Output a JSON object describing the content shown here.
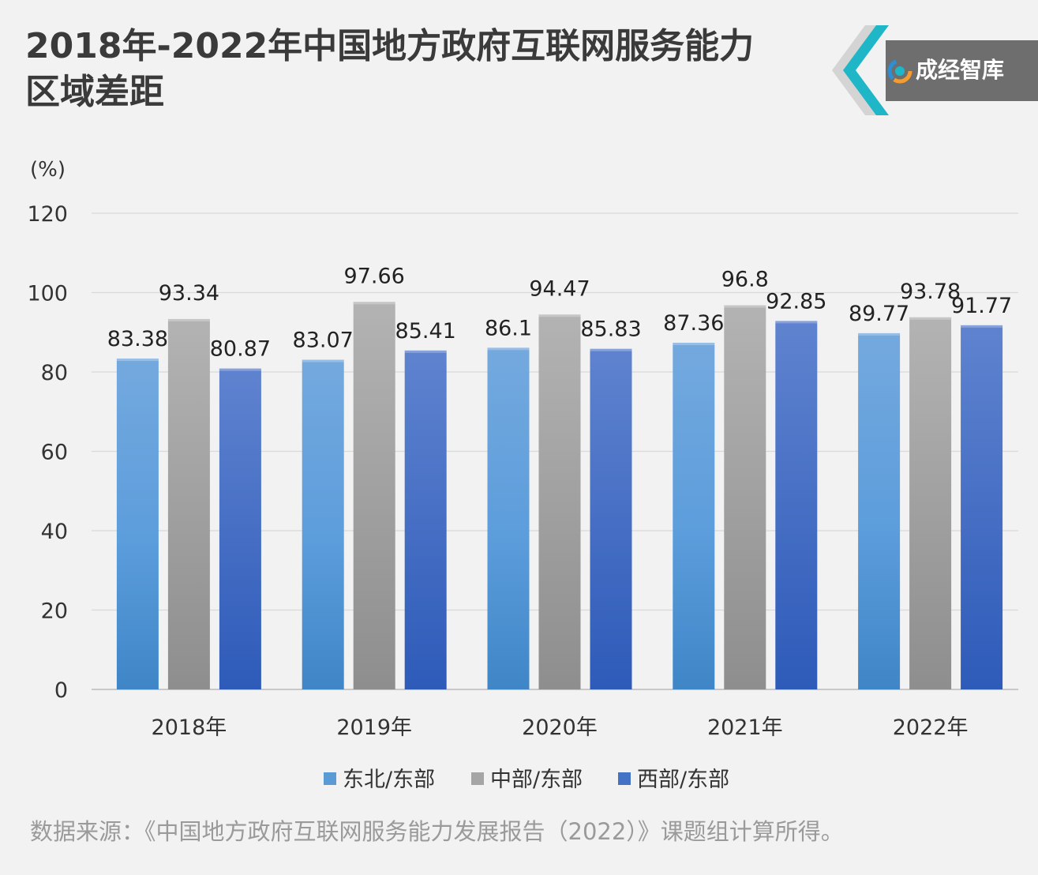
{
  "title_line1": "2018年-2022年中国地方政府互联网服务能力",
  "title_line2": "区域差距",
  "brand": {
    "name": "成经智库",
    "accent": "#1fb7c7",
    "box": "#6e6e6e",
    "icon": "swirl-logo-icon"
  },
  "source": "数据来源：《中国地方政府互联网服务能力发展报告（2022）》课题组计算所得。",
  "chart_data": {
    "type": "bar",
    "unit_label": "(%)",
    "categories": [
      "2018年",
      "2019年",
      "2020年",
      "2021年",
      "2022年"
    ],
    "series": [
      {
        "name": "东北/东部",
        "values": [
          83.38,
          83.07,
          86.1,
          87.36,
          89.77
        ],
        "labels": [
          "83.38",
          "83.07",
          "86.1",
          "87.36",
          "89.77"
        ],
        "color": "#5b9bd5"
      },
      {
        "name": "中部/东部",
        "values": [
          93.34,
          97.66,
          94.47,
          96.8,
          93.78
        ],
        "labels": [
          "93.34",
          "97.66",
          "94.47",
          "96.8",
          "93.78"
        ],
        "color": "#a5a5a5"
      },
      {
        "name": "西部/东部",
        "values": [
          80.87,
          85.41,
          85.83,
          92.85,
          91.77
        ],
        "labels": [
          "80.87",
          "85.41",
          "85.83",
          "92.85",
          "91.77"
        ],
        "color": "#4472c4"
      }
    ],
    "ylim": [
      0,
      120
    ],
    "yticks": [
      "0",
      "20",
      "40",
      "60",
      "80",
      "100",
      "120"
    ],
    "grid": true,
    "legend": "bottom"
  }
}
